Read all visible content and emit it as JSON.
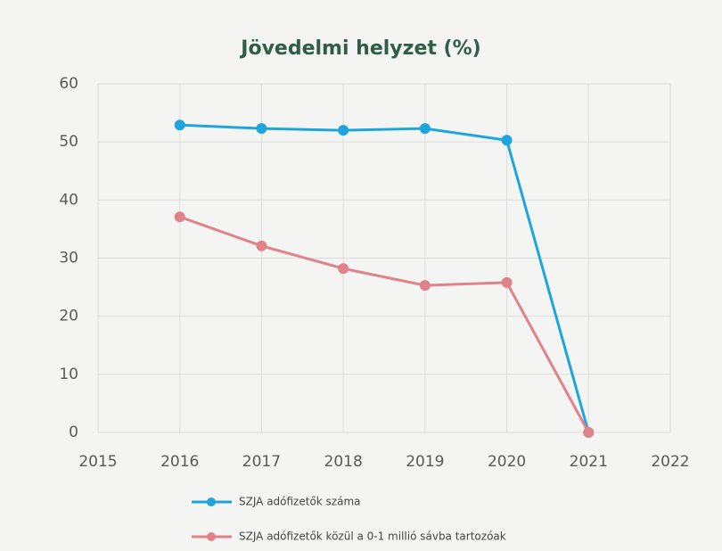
{
  "chart_data": {
    "type": "line",
    "title": "Jövedelmi helyzet (%)",
    "x": [
      2016,
      2017,
      2018,
      2019,
      2020,
      2021
    ],
    "series": [
      {
        "name": "SZJA adófizetők száma",
        "color": "#1ea5dd",
        "values": [
          52.9,
          52.3,
          52.0,
          52.3,
          50.3,
          0
        ]
      },
      {
        "name": "SZJA adófizetők közül a 0-1 millió sávba tartozóak",
        "color": "#e0828a",
        "values": [
          37.1,
          32.1,
          28.2,
          25.3,
          25.8,
          0
        ]
      }
    ],
    "xlim": [
      2015,
      2022
    ],
    "xticks": [
      2015,
      2016,
      2017,
      2018,
      2019,
      2020,
      2021,
      2022
    ],
    "ylim": [
      0,
      60
    ],
    "yticks": [
      0,
      10,
      20,
      30,
      40,
      50,
      60
    ],
    "grid": true,
    "legend": "bottom"
  }
}
